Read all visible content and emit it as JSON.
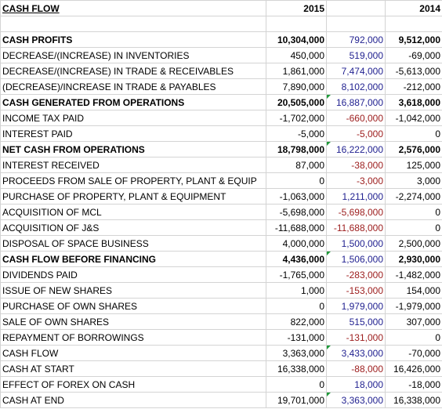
{
  "header": {
    "title": "CASH FLOW",
    "year_a": "2015",
    "year_b": "",
    "year_c": "2014"
  },
  "rows": [
    {
      "label": "CASH PROFITS",
      "v2015": "10,304,000",
      "diff": "792,000",
      "v2014": "9,512,000",
      "bold": true,
      "diff_color": "#1f1f8f",
      "flag": false
    },
    {
      "label": "DECREASE/(INCREASE) IN INVENTORIES",
      "v2015": "450,000",
      "diff": "519,000",
      "v2014": "-69,000",
      "bold": false,
      "diff_color": "#1f1f8f",
      "flag": false
    },
    {
      "label": "DECREASE/(INCREASE) IN TRADE & RECEIVABLES",
      "v2015": "1,861,000",
      "diff": "7,474,000",
      "v2014": "-5,613,000",
      "bold": false,
      "diff_color": "#1f1f8f",
      "flag": false
    },
    {
      "label": "(DECREASE)/INCREASE IN TRADE & PAYABLES",
      "v2015": "7,890,000",
      "diff": "8,102,000",
      "v2014": "-212,000",
      "bold": false,
      "diff_color": "#1f1f8f",
      "flag": false
    },
    {
      "label": "CASH GENERATED FROM OPERATIONS",
      "v2015": "20,505,000",
      "diff": "16,887,000",
      "v2014": "3,618,000",
      "bold": true,
      "diff_color": "#1f1f8f",
      "flag": true
    },
    {
      "label": "INCOME TAX PAID",
      "v2015": "-1,702,000",
      "diff": "-660,000",
      "v2014": "-1,042,000",
      "bold": false,
      "diff_color": "#9c1c1c",
      "flag": false
    },
    {
      "label": "INTEREST PAID",
      "v2015": "-5,000",
      "diff": "-5,000",
      "v2014": "0",
      "bold": false,
      "diff_color": "#9c1c1c",
      "flag": false
    },
    {
      "label": "NET CASH FROM OPERATIONS",
      "v2015": "18,798,000",
      "diff": "16,222,000",
      "v2014": "2,576,000",
      "bold": true,
      "diff_color": "#1f1f8f",
      "flag": true
    },
    {
      "label": "INTEREST RECEIVED",
      "v2015": "87,000",
      "diff": "-38,000",
      "v2014": "125,000",
      "bold": false,
      "diff_color": "#9c1c1c",
      "flag": false
    },
    {
      "label": "PROCEEDS FROM SALE OF PROPERTY, PLANT & EQUIP",
      "v2015": "0",
      "diff": "-3,000",
      "v2014": "3,000",
      "bold": false,
      "diff_color": "#9c1c1c",
      "flag": false
    },
    {
      "label": "PURCHASE OF PROPERTY, PLANT & EQUIPMENT",
      "v2015": "-1,063,000",
      "diff": "1,211,000",
      "v2014": "-2,274,000",
      "bold": false,
      "diff_color": "#1f1f8f",
      "flag": false
    },
    {
      "label": "ACQUISITION OF MCL",
      "v2015": "-5,698,000",
      "diff": "-5,698,000",
      "v2014": "0",
      "bold": false,
      "diff_color": "#9c1c1c",
      "flag": false
    },
    {
      "label": "ACQUISITION OF J&S",
      "v2015": "-11,688,000",
      "diff": "-11,688,000",
      "v2014": "0",
      "bold": false,
      "diff_color": "#9c1c1c",
      "flag": false
    },
    {
      "label": "DISPOSAL OF SPACE BUSINESS",
      "v2015": "4,000,000",
      "diff": "1,500,000",
      "v2014": "2,500,000",
      "bold": false,
      "diff_color": "#1f1f8f",
      "flag": false
    },
    {
      "label": "CASH FLOW BEFORE FINANCING",
      "v2015": "4,436,000",
      "diff": "1,506,000",
      "v2014": "2,930,000",
      "bold": true,
      "diff_color": "#1f1f8f",
      "flag": true
    },
    {
      "label": "DIVIDENDS PAID",
      "v2015": "-1,765,000",
      "diff": "-283,000",
      "v2014": "-1,482,000",
      "bold": false,
      "diff_color": "#9c1c1c",
      "flag": false
    },
    {
      "label": "ISSUE OF NEW SHARES",
      "v2015": "1,000",
      "diff": "-153,000",
      "v2014": "154,000",
      "bold": false,
      "diff_color": "#9c1c1c",
      "flag": false
    },
    {
      "label": "PURCHASE OF OWN SHARES",
      "v2015": "0",
      "diff": "1,979,000",
      "v2014": "-1,979,000",
      "bold": false,
      "diff_color": "#1f1f8f",
      "flag": false
    },
    {
      "label": "SALE OF OWN SHARES",
      "v2015": "822,000",
      "diff": "515,000",
      "v2014": "307,000",
      "bold": false,
      "diff_color": "#1f1f8f",
      "flag": false
    },
    {
      "label": "REPAYMENT OF BORROWINGS",
      "v2015": "-131,000",
      "diff": "-131,000",
      "v2014": "0",
      "bold": false,
      "diff_color": "#9c1c1c",
      "flag": false
    },
    {
      "label": "CASH FLOW",
      "v2015": "3,363,000",
      "diff": "3,433,000",
      "v2014": "-70,000",
      "bold": false,
      "diff_color": "#1f1f8f",
      "flag": true
    },
    {
      "label": "CASH AT START",
      "v2015": "16,338,000",
      "diff": "-88,000",
      "v2014": "16,426,000",
      "bold": false,
      "diff_color": "#9c1c1c",
      "flag": false
    },
    {
      "label": "EFFECT OF FOREX ON CASH",
      "v2015": "0",
      "diff": "18,000",
      "v2014": "-18,000",
      "bold": false,
      "diff_color": "#1f1f8f",
      "flag": false
    },
    {
      "label": "CASH AT END",
      "v2015": "19,701,000",
      "diff": "3,363,000",
      "v2014": "16,338,000",
      "bold": false,
      "diff_color": "#1f1f8f",
      "flag": true
    }
  ]
}
